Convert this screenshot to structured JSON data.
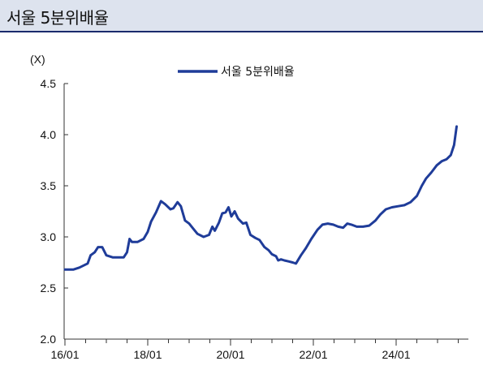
{
  "header": {
    "title": "서울 5분위배율"
  },
  "chart_data": {
    "type": "line",
    "title": "서울 5분위배율",
    "ylabel": "(X)",
    "xlabel": "",
    "ylim": [
      2.0,
      4.5
    ],
    "yticks": [
      "2.0",
      "2.5",
      "3.0",
      "3.5",
      "4.0",
      "4.5"
    ],
    "xlim": [
      2016.0,
      2025.9
    ],
    "xticks": [
      {
        "label": "16/01",
        "value": 2016.0
      },
      {
        "label": "18/01",
        "value": 2018.0
      },
      {
        "label": "20/01",
        "value": 2020.0
      },
      {
        "label": "22/01",
        "value": 2022.0
      },
      {
        "label": "24/01",
        "value": 2024.0
      }
    ],
    "grid": false,
    "legend_position": "top-center",
    "series": [
      {
        "name": "서울 5분위배율",
        "color": "#1f3c99",
        "points": [
          [
            2016.0,
            2.68
          ],
          [
            2016.2,
            2.68
          ],
          [
            2016.35,
            2.7
          ],
          [
            2016.55,
            2.74
          ],
          [
            2016.62,
            2.82
          ],
          [
            2016.72,
            2.85
          ],
          [
            2016.8,
            2.9
          ],
          [
            2016.9,
            2.9
          ],
          [
            2017.0,
            2.82
          ],
          [
            2017.15,
            2.8
          ],
          [
            2017.3,
            2.8
          ],
          [
            2017.42,
            2.8
          ],
          [
            2017.5,
            2.85
          ],
          [
            2017.56,
            2.98
          ],
          [
            2017.62,
            2.95
          ],
          [
            2017.75,
            2.95
          ],
          [
            2017.9,
            2.98
          ],
          [
            2018.0,
            3.05
          ],
          [
            2018.08,
            3.15
          ],
          [
            2018.2,
            3.24
          ],
          [
            2018.32,
            3.35
          ],
          [
            2018.42,
            3.32
          ],
          [
            2018.55,
            3.27
          ],
          [
            2018.62,
            3.28
          ],
          [
            2018.72,
            3.34
          ],
          [
            2018.8,
            3.3
          ],
          [
            2018.9,
            3.16
          ],
          [
            2019.0,
            3.13
          ],
          [
            2019.1,
            3.08
          ],
          [
            2019.2,
            3.03
          ],
          [
            2019.35,
            3.0
          ],
          [
            2019.48,
            3.02
          ],
          [
            2019.56,
            3.1
          ],
          [
            2019.62,
            3.06
          ],
          [
            2019.72,
            3.14
          ],
          [
            2019.8,
            3.23
          ],
          [
            2019.88,
            3.24
          ],
          [
            2019.95,
            3.29
          ],
          [
            2020.02,
            3.2
          ],
          [
            2020.1,
            3.25
          ],
          [
            2020.18,
            3.18
          ],
          [
            2020.3,
            3.13
          ],
          [
            2020.38,
            3.14
          ],
          [
            2020.48,
            3.02
          ],
          [
            2020.6,
            2.99
          ],
          [
            2020.7,
            2.97
          ],
          [
            2020.82,
            2.9
          ],
          [
            2020.92,
            2.87
          ],
          [
            2021.0,
            2.83
          ],
          [
            2021.1,
            2.81
          ],
          [
            2021.15,
            2.77
          ],
          [
            2021.22,
            2.78
          ],
          [
            2021.3,
            2.77
          ],
          [
            2021.4,
            2.76
          ],
          [
            2021.5,
            2.75
          ],
          [
            2021.58,
            2.74
          ],
          [
            2021.7,
            2.82
          ],
          [
            2021.82,
            2.89
          ],
          [
            2021.95,
            2.98
          ],
          [
            2022.1,
            3.07
          ],
          [
            2022.22,
            3.12
          ],
          [
            2022.35,
            3.13
          ],
          [
            2022.48,
            3.12
          ],
          [
            2022.6,
            3.1
          ],
          [
            2022.72,
            3.09
          ],
          [
            2022.82,
            3.13
          ],
          [
            2022.92,
            3.12
          ],
          [
            2023.05,
            3.1
          ],
          [
            2023.2,
            3.1
          ],
          [
            2023.35,
            3.11
          ],
          [
            2023.5,
            3.16
          ],
          [
            2023.62,
            3.22
          ],
          [
            2023.75,
            3.27
          ],
          [
            2023.9,
            3.29
          ],
          [
            2024.05,
            3.3
          ],
          [
            2024.2,
            3.31
          ],
          [
            2024.35,
            3.34
          ],
          [
            2024.5,
            3.4
          ],
          [
            2024.62,
            3.5
          ],
          [
            2024.72,
            3.57
          ],
          [
            2024.85,
            3.63
          ],
          [
            2024.98,
            3.7
          ],
          [
            2025.1,
            3.74
          ],
          [
            2025.22,
            3.76
          ],
          [
            2025.32,
            3.8
          ],
          [
            2025.4,
            3.9
          ],
          [
            2025.46,
            4.08
          ]
        ]
      }
    ]
  }
}
